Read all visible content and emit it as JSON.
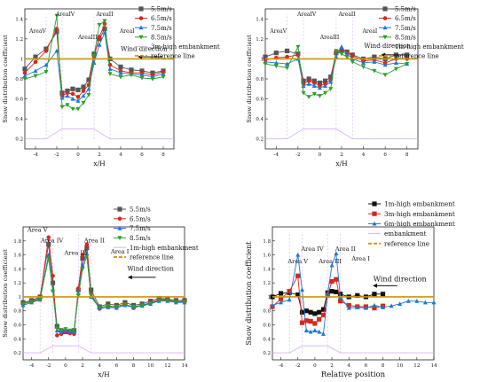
{
  "chart_data": [
    {
      "type": "line",
      "xlabel": "x/H",
      "ylabel": "Snow distribution coefficient",
      "xlim": [
        -5,
        9
      ],
      "ylim": [
        0.1,
        1.5
      ],
      "xticks": [
        -4,
        -2,
        0,
        2,
        4,
        6,
        8
      ],
      "yticks": [
        0.2,
        0.4,
        0.6,
        0.8,
        1.0,
        1.2,
        1.4
      ],
      "reference_y": 1.0,
      "annotations": [
        "AreaV",
        "AreaIV",
        "AreaIII",
        "AreaII",
        "AreaI",
        "Wind direction"
      ],
      "x": [
        -5,
        -4,
        -3,
        -2,
        -1.5,
        -1,
        -0.5,
        0,
        0.5,
        1,
        1.5,
        2,
        2.5,
        3,
        4,
        5,
        6,
        7,
        8
      ],
      "series": [
        {
          "name": "5.5m/s",
          "marker": "square",
          "color": "#555555",
          "values": [
            0.9,
            1.02,
            1.1,
            1.27,
            0.66,
            0.68,
            0.7,
            0.69,
            0.72,
            0.79,
            1.05,
            1.2,
            1.3,
            1.0,
            0.92,
            0.89,
            0.88,
            0.86,
            0.88
          ]
        },
        {
          "name": "6.5m/s",
          "marker": "circle",
          "color": "#d9261c",
          "values": [
            0.86,
            0.97,
            1.08,
            1.3,
            0.63,
            0.66,
            0.65,
            0.62,
            0.68,
            0.74,
            1.02,
            1.22,
            1.35,
            0.94,
            0.88,
            0.86,
            0.86,
            0.84,
            0.87
          ]
        },
        {
          "name": "7.5m/s",
          "marker": "triangle",
          "color": "#1f77d4",
          "values": [
            0.83,
            0.88,
            0.94,
            1.08,
            0.61,
            0.63,
            0.6,
            0.58,
            0.63,
            0.7,
            0.96,
            1.14,
            1.26,
            0.9,
            0.86,
            0.85,
            0.84,
            0.82,
            0.85
          ]
        },
        {
          "name": "8.5m/s",
          "marker": "triangle-down",
          "color": "#2ca02c",
          "values": [
            0.8,
            0.83,
            0.87,
            1.43,
            0.52,
            0.54,
            0.5,
            0.5,
            0.56,
            0.64,
            1.03,
            1.34,
            1.38,
            0.85,
            0.82,
            0.84,
            0.81,
            0.8,
            0.82
          ]
        },
        {
          "name": "3m-high embankment",
          "marker": "none",
          "color": "#d8b4ec",
          "x": [
            -5,
            -3,
            -1.5,
            1.5,
            3,
            9
          ],
          "values": [
            0.2,
            0.2,
            0.3,
            0.3,
            0.2,
            0.2
          ]
        },
        {
          "name": "reference line",
          "marker": "none",
          "color": "#c8960c",
          "dashed": false,
          "x": [
            -5,
            9
          ],
          "values": [
            1.0,
            1.0
          ]
        }
      ]
    },
    {
      "type": "line",
      "xlabel": "x/H",
      "ylabel": "Snow distribution coefficient",
      "xlim": [
        -5,
        9
      ],
      "ylim": [
        0.1,
        1.5
      ],
      "xticks": [
        -4,
        -2,
        0,
        2,
        4,
        6,
        8
      ],
      "yticks": [
        0.2,
        0.4,
        0.6,
        0.8,
        1.0,
        1.2,
        1.4
      ],
      "reference_y": 1.0,
      "annotations": [
        "AreaV",
        "AreaIV",
        "AreaIII",
        "AreaII",
        "AreaI",
        "Wind direction"
      ],
      "x": [
        -5,
        -4,
        -3,
        -2,
        -1.5,
        -1,
        -0.5,
        0,
        0.5,
        1,
        1.5,
        2,
        2.5,
        3,
        4,
        5,
        6,
        7,
        8
      ],
      "series": [
        {
          "name": "5.5m/s",
          "marker": "square",
          "color": "#555555",
          "values": [
            1.02,
            1.06,
            1.08,
            1.05,
            0.78,
            0.8,
            0.78,
            0.76,
            0.78,
            0.82,
            1.06,
            1.08,
            1.07,
            1.04,
            1.0,
            1.02,
            1.0,
            1.04,
            1.04
          ]
        },
        {
          "name": "6.5m/s",
          "marker": "circle",
          "color": "#d9261c",
          "values": [
            0.99,
            1.01,
            1.02,
            1.04,
            0.75,
            0.78,
            0.76,
            0.73,
            0.75,
            0.79,
            1.07,
            1.1,
            1.06,
            1.03,
            0.98,
            0.99,
            0.96,
            1.0,
            1.0
          ]
        },
        {
          "name": "7.5m/s",
          "marker": "triangle",
          "color": "#1f77d4",
          "values": [
            0.97,
            0.96,
            0.95,
            1.0,
            0.73,
            0.75,
            0.73,
            0.71,
            0.73,
            0.77,
            1.02,
            1.12,
            1.05,
            1.0,
            0.96,
            0.97,
            0.94,
            0.96,
            0.95
          ]
        },
        {
          "name": "8.5m/s",
          "marker": "triangle-down",
          "color": "#2ca02c",
          "values": [
            0.95,
            0.93,
            0.91,
            1.12,
            0.66,
            0.62,
            0.65,
            0.63,
            0.66,
            0.7,
            1.08,
            1.05,
            1.02,
            0.97,
            0.92,
            0.88,
            0.84,
            0.9,
            0.95
          ]
        },
        {
          "name": "1m-high embankment",
          "marker": "none",
          "color": "#d8b4ec",
          "x": [
            -5,
            -3,
            -1.5,
            1.5,
            3,
            9
          ],
          "values": [
            0.2,
            0.2,
            0.3,
            0.3,
            0.2,
            0.2
          ]
        },
        {
          "name": "reference line",
          "marker": "none",
          "color": "#c8960c",
          "x": [
            -5,
            9
          ],
          "values": [
            1.0,
            1.0
          ]
        }
      ]
    },
    {
      "type": "line",
      "xlabel": "x/H",
      "ylabel": "Snow distribution coefficient",
      "xlim": [
        -5,
        14
      ],
      "ylim": [
        0.1,
        2.0
      ],
      "xticks": [
        -4,
        -2,
        0,
        2,
        4,
        6,
        8,
        10,
        12,
        14
      ],
      "yticks": [
        0.2,
        0.4,
        0.6,
        0.8,
        1.0,
        1.2,
        1.4,
        1.6,
        1.8
      ],
      "reference_y": 1.0,
      "annotations": [
        "Area V",
        "Area IV",
        "Area III",
        "Area II",
        "Area I",
        "Wind direction"
      ],
      "x": [
        -5,
        -4,
        -3,
        -2,
        -1.5,
        -1,
        -0.5,
        0,
        0.5,
        1,
        1.5,
        2,
        2.5,
        3,
        4,
        5,
        6,
        7,
        8,
        9,
        10,
        11,
        12,
        13,
        14
      ],
      "series": [
        {
          "name": "5.5m/s",
          "marker": "square",
          "color": "#555555",
          "values": [
            0.92,
            0.95,
            1.0,
            1.75,
            1.2,
            0.58,
            0.52,
            0.5,
            0.5,
            0.52,
            1.1,
            1.55,
            1.7,
            1.1,
            0.86,
            0.9,
            0.88,
            0.92,
            0.88,
            0.9,
            0.94,
            0.98,
            0.97,
            0.95,
            0.95
          ]
        },
        {
          "name": "6.5m/s",
          "marker": "circle",
          "color": "#d9261c",
          "values": [
            0.9,
            0.94,
            0.98,
            1.85,
            1.3,
            0.45,
            0.47,
            0.5,
            0.48,
            0.47,
            1.12,
            1.6,
            1.75,
            1.05,
            0.83,
            0.86,
            0.86,
            0.9,
            0.84,
            0.88,
            0.92,
            0.96,
            0.96,
            0.93,
            0.94
          ]
        },
        {
          "name": "7.5m/s",
          "marker": "triangle",
          "color": "#1f77d4",
          "values": [
            0.88,
            0.92,
            0.96,
            1.6,
            1.1,
            0.52,
            0.5,
            0.52,
            0.5,
            0.5,
            1.05,
            1.45,
            1.62,
            1.0,
            0.84,
            0.85,
            0.84,
            0.88,
            0.85,
            0.87,
            0.9,
            0.94,
            0.94,
            0.92,
            0.92
          ]
        },
        {
          "name": "8.5m/s",
          "marker": "triangle-down",
          "color": "#2ca02c",
          "values": [
            0.9,
            0.93,
            0.97,
            1.55,
            1.08,
            0.55,
            0.52,
            0.54,
            0.52,
            0.52,
            1.02,
            1.4,
            1.58,
            1.02,
            0.85,
            0.87,
            0.86,
            0.89,
            0.86,
            0.88,
            0.91,
            0.95,
            0.95,
            0.93,
            0.93
          ]
        },
        {
          "name": "1m-high embankment",
          "marker": "none",
          "color": "#d8b4ec",
          "x": [
            -5,
            -3,
            -1.5,
            1.5,
            3,
            14
          ],
          "values": [
            0.2,
            0.2,
            0.3,
            0.3,
            0.2,
            0.2
          ]
        },
        {
          "name": "reference line",
          "marker": "none",
          "color": "#c8960c",
          "x": [
            -5,
            14
          ],
          "values": [
            1.0,
            1.0
          ]
        }
      ]
    },
    {
      "type": "line",
      "xlabel": "Relative position",
      "ylabel": "Snow distribution coefficient",
      "xlim": [
        -5,
        14
      ],
      "ylim": [
        0.1,
        2.0
      ],
      "xticks": [
        -4,
        -2,
        0,
        2,
        4,
        6,
        8,
        10,
        12,
        14
      ],
      "yticks": [
        0.2,
        0.4,
        0.6,
        0.8,
        1.0,
        1.2,
        1.4,
        1.6,
        1.8
      ],
      "reference_y": 1.0,
      "annotations": [
        "Area V",
        "Area IV",
        "Area III",
        "Area II",
        "Area I",
        "Wind direction"
      ],
      "series": [
        {
          "name": "1m-high embankment",
          "marker": "square",
          "color": "#111111",
          "x": [
            -5,
            -4,
            -3,
            -2,
            -1.5,
            -1,
            -0.5,
            0,
            0.5,
            1,
            1.5,
            2,
            2.5,
            3,
            4,
            5,
            6,
            7,
            8
          ],
          "values": [
            1.0,
            1.05,
            1.06,
            1.03,
            0.78,
            0.8,
            0.78,
            0.76,
            0.78,
            0.82,
            1.06,
            1.08,
            1.07,
            1.04,
            1.0,
            1.02,
            1.0,
            1.04,
            1.04
          ]
        },
        {
          "name": "3m-high embankment",
          "marker": "square",
          "color": "#d9261c",
          "x": [
            -5,
            -4,
            -3,
            -2,
            -1.5,
            -1,
            -0.5,
            0,
            0.5,
            1,
            1.5,
            2,
            2.5,
            3,
            4,
            5,
            6,
            7,
            8
          ],
          "values": [
            0.86,
            0.97,
            1.08,
            1.3,
            0.63,
            0.66,
            0.65,
            0.62,
            0.68,
            0.74,
            1.02,
            1.22,
            1.25,
            0.94,
            0.88,
            0.86,
            0.86,
            0.84,
            0.87
          ]
        },
        {
          "name": "6m-high embankment",
          "marker": "triangle",
          "color": "#1f77d4",
          "x": [
            -5,
            -4,
            -3,
            -2,
            -1.5,
            -1,
            -0.5,
            0,
            0.5,
            1,
            1.5,
            2,
            2.5,
            3,
            4,
            5,
            6,
            7,
            8,
            9,
            10,
            11,
            12,
            13,
            14
          ],
          "values": [
            0.88,
            0.92,
            0.96,
            1.6,
            1.1,
            0.52,
            0.5,
            0.52,
            0.5,
            0.47,
            1.05,
            1.45,
            1.62,
            1.0,
            0.84,
            0.85,
            0.84,
            0.88,
            0.85,
            0.87,
            0.9,
            0.94,
            0.94,
            0.92,
            0.92
          ]
        },
        {
          "name": "embankment",
          "marker": "none",
          "color": "#d8b4ec",
          "x": [
            -5,
            -3,
            -1.5,
            1.5,
            3,
            14
          ],
          "values": [
            0.2,
            0.2,
            0.3,
            0.3,
            0.2,
            0.2
          ]
        },
        {
          "name": "reference line",
          "marker": "none",
          "color": "#c8960c",
          "x": [
            -5,
            14
          ],
          "values": [
            1.0,
            1.0
          ]
        }
      ]
    }
  ]
}
